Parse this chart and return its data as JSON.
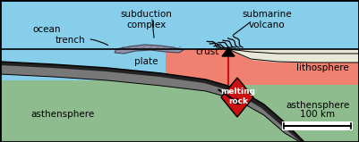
{
  "figsize": [
    4.01,
    1.59
  ],
  "dpi": 100,
  "ocean_blue": "#87CEEB",
  "lithosphere_salmon": "#F08070",
  "asthensphere_green": "#8FBC8F",
  "plate_gray": "#787878",
  "plate_dark": "#222222",
  "crust_white": "#E8E8D8",
  "subduct_gray": "#9090A8",
  "melting_red": "#CC1111",
  "conduit_red": "#CC1111",
  "labels": {
    "trench": "trench",
    "subduction_complex": "subduction\ncomplex",
    "submarine_volcano": "submarine\nvolcano",
    "ocean": "ocean",
    "plate": "plate",
    "crust": "crust",
    "lithosphere": "lithosphere",
    "asthensphere_left": "asthensphere",
    "asthensphere_right": "asthensphere",
    "melting_rock": "melting\nrock",
    "scale": "100 km"
  },
  "font_size": 7.5,
  "font_size_small": 6.5
}
